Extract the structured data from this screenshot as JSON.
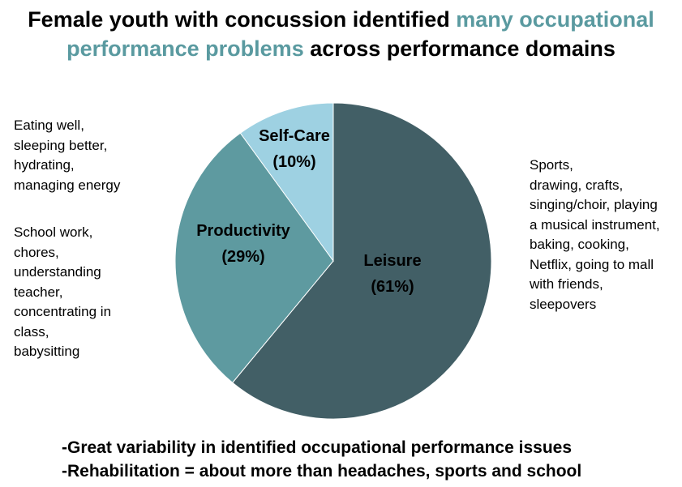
{
  "title": {
    "part1": "Female youth with concussion identified ",
    "part2": "many occupational performance problems",
    "part3": " across performance domains"
  },
  "notes": {
    "selfcare": "Eating well,\nsleeping better,\nhydrating,\nmanaging energy",
    "productivity": "School work,\nchores,\nunderstanding\nteacher,\nconcentrating in\nclass,\nbabysitting",
    "leisure": "Sports,\ndrawing, crafts,\nsinging/choir, playing\na musical instrument,\nbaking, cooking,\nNetflix, going to mall\nwith friends,\nsleepovers"
  },
  "bullets": [
    "-Great variability in identified occupational performance issues",
    "-Rehabilitation = about more than headaches, sports and school"
  ],
  "chart_data": {
    "type": "pie",
    "slices": [
      {
        "name": "Leisure",
        "label": "(61%)",
        "value": 61,
        "color": "#425f66"
      },
      {
        "name": "Productivity",
        "label": "(29%)",
        "value": 29,
        "color": "#5e9aa0"
      },
      {
        "name": "Self-Care",
        "label": "(10%)",
        "value": 10,
        "color": "#9ed1e2"
      }
    ]
  }
}
